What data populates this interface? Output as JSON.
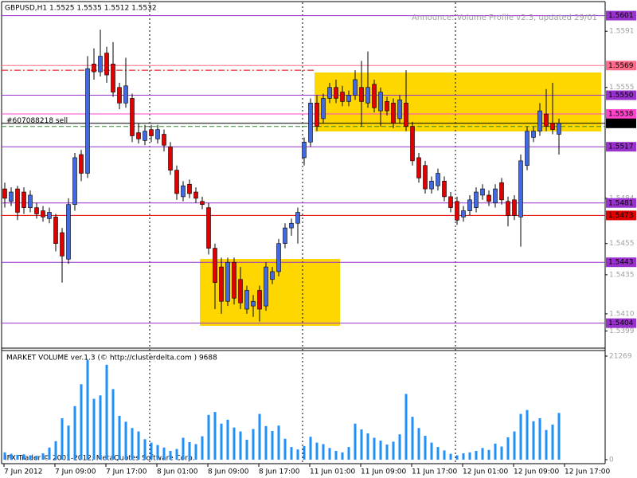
{
  "chart_data": {
    "type": "candlestick",
    "title": "GBPUSD,H1  1.5525 1.5535 1.5512 1.5532",
    "announcement": "Announce: Volume Profile v2.3, updated 29/01",
    "ylim": [
      1.5388,
      1.5611
    ],
    "yticks": [
      1.5591,
      1.5555,
      1.5484,
      1.5455,
      1.5435,
      {
        "value": 1.541,
        "label": "1.5410"
      },
      1.5399
    ],
    "bull_color": "#4169e1",
    "bear_color": "#e00000",
    "ohlc": [
      [
        1.549,
        1.5494,
        1.5478,
        1.5484
      ],
      [
        1.5482,
        1.5491,
        1.5479,
        1.5488
      ],
      [
        1.549,
        1.5492,
        1.547,
        1.5475
      ],
      [
        1.5488,
        1.5491,
        1.5474,
        1.5478
      ],
      [
        1.5478,
        1.5489,
        1.5475,
        1.5486
      ],
      [
        1.5478,
        1.5481,
        1.5471,
        1.5474
      ],
      [
        1.5476,
        1.5479,
        1.5469,
        1.5472
      ],
      [
        1.5471,
        1.5478,
        1.5468,
        1.5475
      ],
      [
        1.5472,
        1.5474,
        1.545,
        1.5455
      ],
      [
        1.5462,
        1.5465,
        1.543,
        1.5447
      ],
      [
        1.5445,
        1.5484,
        1.5442,
        1.548
      ],
      [
        1.548,
        1.5513,
        1.5476,
        1.551
      ],
      [
        1.5512,
        1.5515,
        1.5495,
        1.55
      ],
      [
        1.55,
        1.5575,
        1.5497,
        1.5567
      ],
      [
        1.557,
        1.558,
        1.556,
        1.5565
      ],
      [
        1.5565,
        1.5592,
        1.5562,
        1.5575
      ],
      [
        1.5577,
        1.5581,
        1.5558,
        1.5563
      ],
      [
        1.557,
        1.5584,
        1.5549,
        1.5552
      ],
      [
        1.5555,
        1.5558,
        1.5541,
        1.5545
      ],
      [
        1.5545,
        1.5574,
        1.5542,
        1.5556
      ],
      [
        1.5548,
        1.5551,
        1.552,
        1.5524
      ],
      [
        1.5526,
        1.5532,
        1.5519,
        1.5522
      ],
      [
        1.5521,
        1.5531,
        1.5518,
        1.5527
      ],
      [
        1.5528,
        1.5531,
        1.552,
        1.5524
      ],
      [
        1.5522,
        1.5531,
        1.5519,
        1.5528
      ],
      [
        1.5525,
        1.5528,
        1.5514,
        1.5518
      ],
      [
        1.5517,
        1.552,
        1.5499,
        1.5502
      ],
      [
        1.5502,
        1.5505,
        1.5483,
        1.5487
      ],
      [
        1.5485,
        1.5495,
        1.5482,
        1.5492
      ],
      [
        1.5493,
        1.5496,
        1.5484,
        1.5487
      ],
      [
        1.5488,
        1.5491,
        1.5481,
        1.5484
      ],
      [
        1.5482,
        1.5485,
        1.5477,
        1.548
      ],
      [
        1.5478,
        1.5481,
        1.5448,
        1.5452
      ],
      [
        1.5452,
        1.5455,
        1.5413,
        1.543
      ],
      [
        1.544,
        1.5446,
        1.541,
        1.5418
      ],
      [
        1.5418,
        1.5446,
        1.5415,
        1.5443
      ],
      [
        1.5443,
        1.5446,
        1.5416,
        1.542
      ],
      [
        1.5432,
        1.544,
        1.5413,
        1.5417
      ],
      [
        1.5413,
        1.5428,
        1.541,
        1.5425
      ],
      [
        1.5415,
        1.5422,
        1.5408,
        1.5418
      ],
      [
        1.5425,
        1.5428,
        1.5405,
        1.5413
      ],
      [
        1.5415,
        1.5443,
        1.5412,
        1.544
      ],
      [
        1.5432,
        1.544,
        1.5429,
        1.5437
      ],
      [
        1.5437,
        1.5458,
        1.5434,
        1.5455
      ],
      [
        1.5455,
        1.5468,
        1.5452,
        1.5465
      ],
      [
        1.5465,
        1.5471,
        1.546,
        1.5468
      ],
      [
        1.5468,
        1.5478,
        1.5455,
        1.5475
      ],
      [
        1.551,
        1.5523,
        1.5505,
        1.552
      ],
      [
        1.552,
        1.5548,
        1.5517,
        1.5545
      ],
      [
        1.5545,
        1.555,
        1.5527,
        1.553
      ],
      [
        1.5535,
        1.5551,
        1.5532,
        1.5548
      ],
      [
        1.5548,
        1.5558,
        1.5545,
        1.5555
      ],
      [
        1.5555,
        1.556,
        1.5545,
        1.5548
      ],
      [
        1.5552,
        1.5556,
        1.5543,
        1.5546
      ],
      [
        1.5546,
        1.5553,
        1.5543,
        1.555
      ],
      [
        1.555,
        1.5566,
        1.5547,
        1.556
      ],
      [
        1.5555,
        1.5572,
        1.553,
        1.5546
      ],
      [
        1.5545,
        1.5578,
        1.5542,
        1.5555
      ],
      [
        1.5557,
        1.556,
        1.5539,
        1.5542
      ],
      [
        1.554,
        1.5555,
        1.553,
        1.5552
      ],
      [
        1.5546,
        1.5549,
        1.5537,
        1.554
      ],
      [
        1.5545,
        1.5548,
        1.5529,
        1.5532
      ],
      [
        1.5535,
        1.555,
        1.5532,
        1.5547
      ],
      [
        1.5545,
        1.5566,
        1.5527,
        1.553
      ],
      [
        1.553,
        1.5533,
        1.5505,
        1.5508
      ],
      [
        1.551,
        1.5513,
        1.5494,
        1.5497
      ],
      [
        1.5505,
        1.5508,
        1.5487,
        1.549
      ],
      [
        1.549,
        1.5498,
        1.5487,
        1.5495
      ],
      [
        1.5492,
        1.5503,
        1.5489,
        1.55
      ],
      [
        1.5495,
        1.5498,
        1.5482,
        1.5485
      ],
      [
        1.5485,
        1.5488,
        1.5475,
        1.5478
      ],
      [
        1.5482,
        1.5485,
        1.5467,
        1.547
      ],
      [
        1.5472,
        1.5479,
        1.5469,
        1.5476
      ],
      [
        1.5476,
        1.5486,
        1.5473,
        1.5483
      ],
      [
        1.5478,
        1.5491,
        1.5475,
        1.5488
      ],
      [
        1.5486,
        1.5493,
        1.5483,
        1.549
      ],
      [
        1.5486,
        1.5489,
        1.5479,
        1.5482
      ],
      [
        1.5481,
        1.5493,
        1.5478,
        1.549
      ],
      [
        1.5494,
        1.5497,
        1.548,
        1.5483
      ],
      [
        1.5482,
        1.5485,
        1.5466,
        1.5473
      ],
      [
        1.5483,
        1.5486,
        1.547,
        1.5473
      ],
      [
        1.5472,
        1.5512,
        1.5453,
        1.5508
      ],
      [
        1.5505,
        1.553,
        1.5502,
        1.5527
      ],
      [
        1.5523,
        1.553,
        1.552,
        1.5527
      ],
      [
        1.5527,
        1.5545,
        1.5524,
        1.554
      ],
      [
        1.5538,
        1.5554,
        1.5527,
        1.553
      ],
      [
        1.5532,
        1.5558,
        1.5525,
        1.5528
      ],
      [
        1.5525,
        1.5535,
        1.5512,
        1.5532
      ]
    ],
    "levels": [
      {
        "value": 1.5601,
        "label": "1.5601",
        "color": "#9932cc"
      },
      {
        "value": 1.5569,
        "label": "1.5569",
        "color": "#ff6b8a"
      },
      {
        "value": 1.5566,
        "color": "#e00000",
        "dash": true
      },
      {
        "value": 1.555,
        "label": "1.5550",
        "color": "#9932cc"
      },
      {
        "value": 1.5538,
        "label": "1.5538",
        "color": "#ff44cc"
      },
      {
        "value": 1.5532,
        "label": "1.5532",
        "color": "#000000"
      },
      {
        "value": 1.5517,
        "label": "1.5517",
        "color": "#9932cc"
      },
      {
        "value": 1.5481,
        "label": "1.5481",
        "color": "#9932cc"
      },
      {
        "value": 1.5473,
        "label": "1.5473",
        "color": "#e00000"
      },
      {
        "value": 1.5443,
        "label": "1.5443",
        "color": "#9932cc"
      },
      {
        "value": 1.5404,
        "label": "1.5404",
        "color": "#9932cc"
      }
    ],
    "order": {
      "value": 1.553,
      "label": "#607088218 sell",
      "color": "#2e8b2e"
    },
    "time_labels": [
      "7 Jun 2012",
      "7 Jun 09:00",
      "7 Jun 17:00",
      "8 Jun 01:00",
      "8 Jun 09:00",
      "8 Jun 17:00",
      "11 Jun 01:00",
      "11 Jun 09:00",
      "11 Jun 17:00",
      "12 Jun 01:00",
      "12 Jun 09:00",
      "12 Jun 17:00"
    ],
    "volume_title": "MARKET VOLUME ver.1.3 (© http://clusterdelta.com ) 9688",
    "volume_color": "#1e90ff",
    "volume_ylim": [
      0,
      21269
    ],
    "volume_yticks": [
      21269,
      0
    ],
    "volume": [
      1500,
      1200,
      1000,
      1100,
      900,
      800,
      1300,
      2500,
      3800,
      8500,
      7000,
      11000,
      15500,
      20500,
      12500,
      13200,
      19500,
      14500,
      9000,
      7800,
      6500,
      5800,
      4200,
      3500,
      3000,
      2500,
      1800,
      2200,
      4500,
      3600,
      3200,
      4800,
      9200,
      9800,
      7400,
      8200,
      6600,
      5800,
      4100,
      6300,
      9400,
      6900,
      5900,
      7000,
      4300,
      2600,
      2100,
      2800,
      4700,
      3500,
      3200,
      2400,
      1800,
      1500,
      2600,
      7400,
      6200,
      5400,
      4500,
      3900,
      3100,
      3700,
      5200,
      13500,
      8800,
      6500,
      4900,
      3500,
      2600,
      1900,
      1200,
      900,
      1300,
      1500,
      1800,
      2400,
      2000,
      3300,
      2700,
      4600,
      5800,
      9400,
      10200,
      7900,
      8500,
      6100,
      7200,
      9600
    ],
    "copyright": "IFX Trader © 2001-2012, MetaQuotes Software Corp."
  }
}
